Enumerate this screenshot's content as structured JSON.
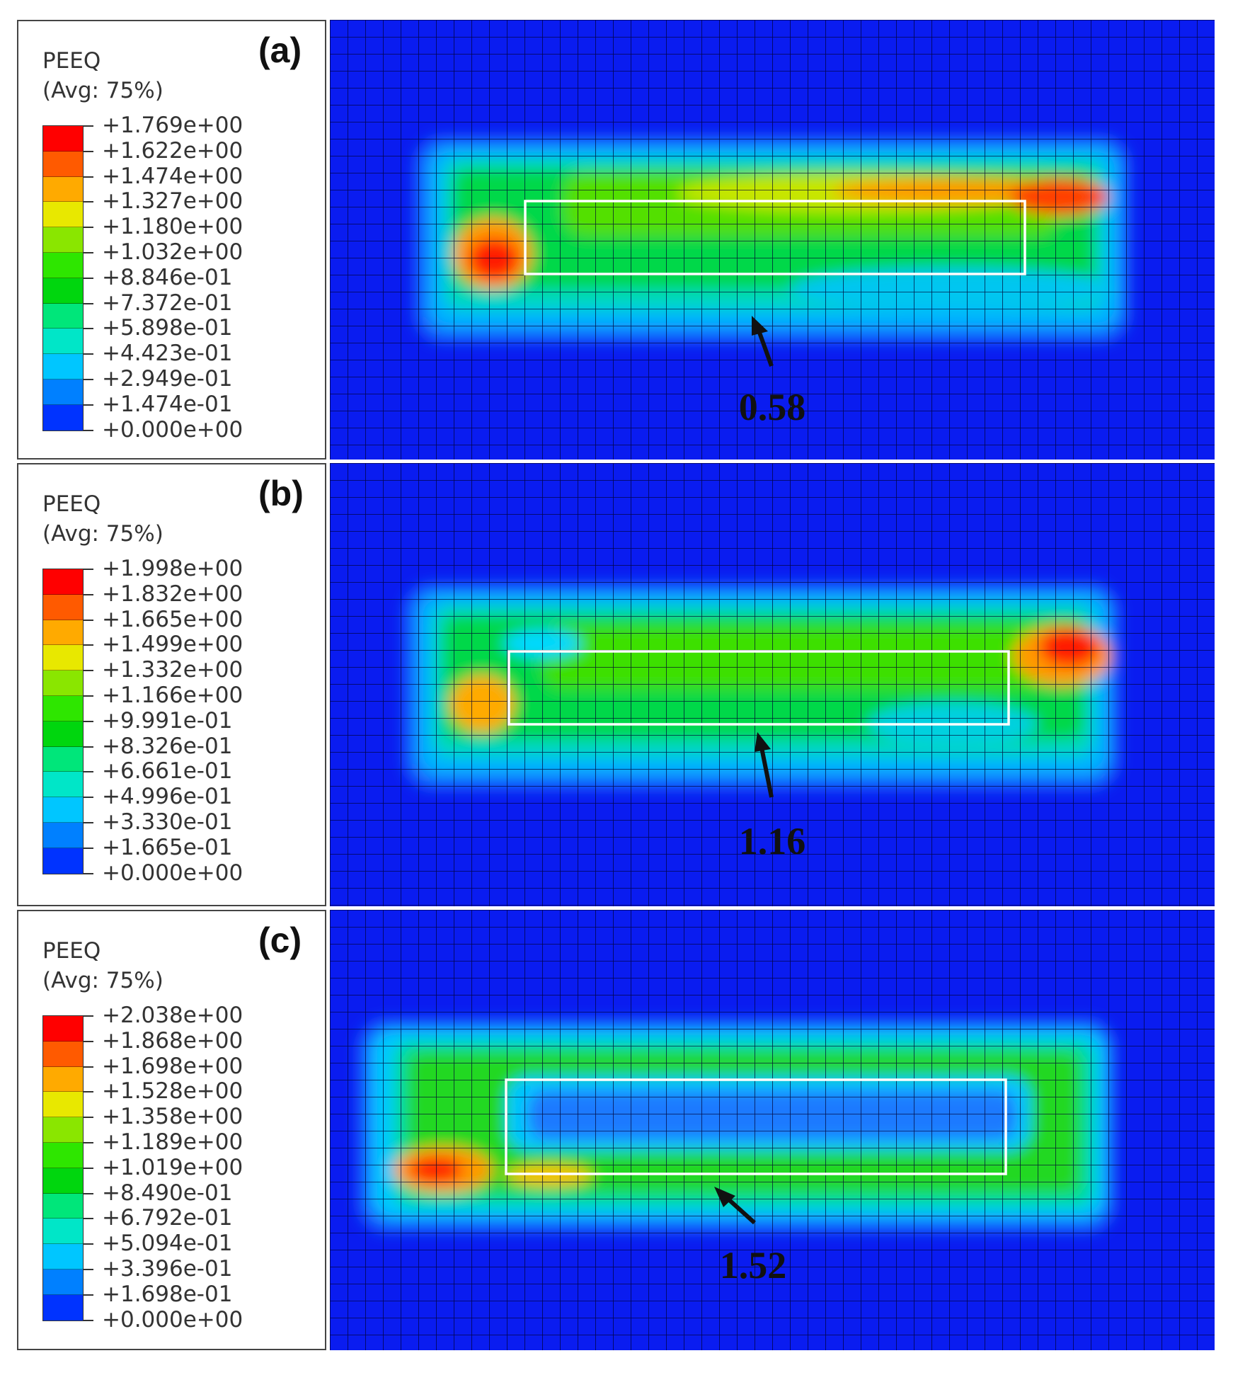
{
  "variable": "PEEQ",
  "averaging": "(Avg: 75%)",
  "colormap": [
    "#ff0000",
    "#ff5a00",
    "#ffaa00",
    "#e8e800",
    "#8ae600",
    "#2ee600",
    "#00d60e",
    "#00e67a",
    "#00e6c8",
    "#00c6ff",
    "#0080ff",
    "#0033ff",
    "#0000ff"
  ],
  "panels": [
    {
      "tag": "(a)",
      "callout": "0.58",
      "levels": [
        "+1.769e+00",
        "+1.622e+00",
        "+1.474e+00",
        "+1.327e+00",
        "+1.180e+00",
        "+1.032e+00",
        "+8.846e-01",
        "+7.372e-01",
        "+5.898e-01",
        "+4.423e-01",
        "+2.949e-01",
        "+1.474e-01",
        "+0.000e+00"
      ]
    },
    {
      "tag": "(b)",
      "callout": "1.16",
      "levels": [
        "+1.998e+00",
        "+1.832e+00",
        "+1.665e+00",
        "+1.499e+00",
        "+1.332e+00",
        "+1.166e+00",
        "+9.991e-01",
        "+8.326e-01",
        "+6.661e-01",
        "+4.996e-01",
        "+3.330e-01",
        "+1.665e-01",
        "+0.000e+00"
      ]
    },
    {
      "tag": "(c)",
      "callout": "1.52",
      "levels": [
        "+2.038e+00",
        "+1.868e+00",
        "+1.698e+00",
        "+1.528e+00",
        "+1.358e+00",
        "+1.189e+00",
        "+1.019e+00",
        "+8.490e-01",
        "+6.792e-01",
        "+5.094e-01",
        "+3.396e-01",
        "+1.698e-01",
        "+0.000e+00"
      ]
    }
  ]
}
